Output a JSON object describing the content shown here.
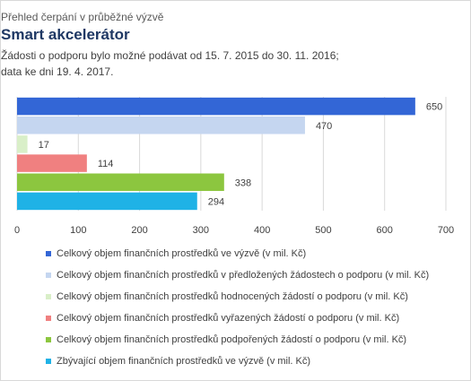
{
  "chart_data": {
    "type": "bar",
    "orientation": "horizontal",
    "supertitle": "Přehled čerpání v průběžné výzvě",
    "title": "Smart akcelerátor",
    "subtitle_lines": [
      "Žádosti o podporu bylo možné podávat od 15. 7. 2015 do 30. 11. 2016;",
      "data ke dni 19. 4. 2017."
    ],
    "xlim": [
      0,
      700
    ],
    "x_ticks": [
      "0",
      "100",
      "200",
      "300",
      "400",
      "500",
      "600",
      "700"
    ],
    "grid": true,
    "legend_position": "bottom",
    "series": [
      {
        "name": "Celkový objem finančních prostředků ve výzvě (v mil. Kč)",
        "value": 650,
        "label": "650",
        "color": "#3366d6"
      },
      {
        "name": "Celkový objem finančních prostředků v předložených žádostech o podporu (v mil. Kč)",
        "value": 470,
        "label": "470",
        "color": "#c5d6f0"
      },
      {
        "name": "Celkový objem finančních prostředků hodnocených žádostí o podporu (v mil. Kč)",
        "value": 17,
        "label": "17",
        "color": "#d9efc8"
      },
      {
        "name": "Celkový objem finančních prostředků vyřazených žádostí o podporu (v mil. Kč)",
        "value": 114,
        "label": "114",
        "color": "#f08080"
      },
      {
        "name": "Celkový objem finančních prostředků podpořených žádostí o podporu (v mil. Kč)",
        "value": 338,
        "label": "338",
        "color": "#8cc63f"
      },
      {
        "name": "Zbývající objem finančních prostředků ve výzvě (v mil. Kč)",
        "value": 294,
        "label": "294",
        "color": "#1fb2e6"
      }
    ]
  }
}
